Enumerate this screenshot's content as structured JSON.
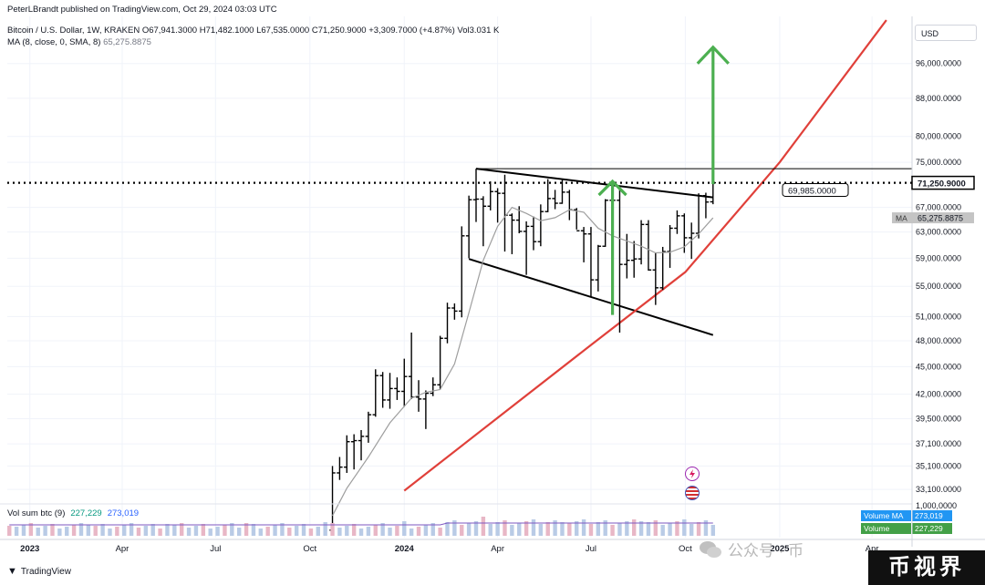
{
  "header": {
    "publisher": "PeterLBrandt published on TradingView.com, Oct 29, 2024 03:03 UTC",
    "symbol": "Bitcoin / U.S. Dollar, 1W, KRAKEN",
    "open_label": "O",
    "open": "67,941.3000",
    "high_label": "H",
    "high": "71,482.1000",
    "low_label": "L",
    "low": "67,535.0000",
    "close_label": "C",
    "close": "71,250.9000",
    "change": "+3,309.7000 (+4.87%)",
    "vol": "Vol3.031 K",
    "ma_label": "MA (8, close, 0, SMA, 8)",
    "ma_value": "65,275.8875"
  },
  "currency": "USD",
  "volume_header": {
    "label": "Vol sum btc (9)",
    "value1": "227,229",
    "value2": "273,019"
  },
  "footer_brand": "TradingView",
  "watermark": {
    "text": "公众号 · 币",
    "badge": "币视界"
  },
  "chart_data": {
    "type": "candlestick",
    "title": "Bitcoin / U.S. Dollar, 1W, KRAKEN",
    "y_scale": "log",
    "ylim": [
      32000,
      108000
    ],
    "y_ticks": [
      96000,
      88000,
      80000,
      75000,
      67000,
      63000,
      59000,
      55000,
      51000,
      48000,
      45000,
      42000,
      39500,
      37100,
      35100,
      33100
    ],
    "y_tick_labels": [
      "96,000.0000",
      "88,000.0000",
      "80,000.0000",
      "75,000.0000",
      "67,000.0000",
      "63,000.0000",
      "59,000.0000",
      "55,000.0000",
      "51,000.0000",
      "48,000.0000",
      "45,000.0000",
      "42,000.0000",
      "39,500.0000",
      "37,100.0000",
      "35,100.0000",
      "33,100.0000"
    ],
    "x_ticks": [
      "2023-01-01",
      "2023-04-01",
      "2023-07-01",
      "2023-10-01",
      "2024-01-01",
      "2024-04-01",
      "2024-07-01",
      "2024-10-01",
      "2025-01-01",
      "2025-04-01"
    ],
    "x_tick_labels": [
      "2023",
      "Apr",
      "Jul",
      "Oct",
      "2024",
      "Apr",
      "Jul",
      "Oct",
      "2025",
      "Apr"
    ],
    "x_range": [
      "2022-12-10",
      "2025-05-10"
    ],
    "price_labels": [
      {
        "value": 71250.9,
        "text": "71,250.9000",
        "style": "current"
      },
      {
        "value": 65275.8875,
        "text": "65,275.8875",
        "tag": "MA",
        "style": "ma"
      },
      {
        "value": 69985,
        "text": "69,985.0000",
        "style": "annotation"
      }
    ],
    "candles": [
      [
        "2023-10-23",
        29900,
        35100,
        29700,
        34500
      ],
      [
        "2023-10-30",
        34500,
        35900,
        33900,
        35000
      ],
      [
        "2023-11-06",
        35000,
        37900,
        34500,
        37300
      ],
      [
        "2023-11-13",
        37300,
        38000,
        34800,
        37400
      ],
      [
        "2023-11-20",
        37400,
        38400,
        35600,
        37800
      ],
      [
        "2023-11-27",
        37800,
        40200,
        37200,
        39900
      ],
      [
        "2023-12-04",
        39900,
        44700,
        39700,
        44000
      ],
      [
        "2023-12-11",
        44000,
        44400,
        40600,
        41400
      ],
      [
        "2023-12-18",
        41400,
        44300,
        40500,
        42600
      ],
      [
        "2023-12-25",
        42600,
        43800,
        41400,
        42300
      ],
      [
        "2024-01-01",
        42300,
        45900,
        40700,
        43900
      ],
      [
        "2024-01-08",
        43900,
        49000,
        41500,
        41700
      ],
      [
        "2024-01-15",
        41700,
        43500,
        40200,
        41500
      ],
      [
        "2024-01-22",
        41500,
        42400,
        38500,
        42100
      ],
      [
        "2024-01-29",
        42100,
        43800,
        41800,
        43000
      ],
      [
        "2024-02-05",
        43000,
        48600,
        42500,
        48300
      ],
      [
        "2024-02-12",
        48300,
        52800,
        47700,
        52100
      ],
      [
        "2024-02-19",
        52100,
        52700,
        50600,
        51700
      ],
      [
        "2024-02-26",
        51700,
        63900,
        50900,
        62400
      ],
      [
        "2024-03-04",
        62400,
        69000,
        59000,
        68300
      ],
      [
        "2024-03-11",
        68300,
        73800,
        64600,
        68400
      ],
      [
        "2024-03-18",
        68400,
        68900,
        60800,
        67200
      ],
      [
        "2024-03-25",
        67200,
        71500,
        66500,
        69700
      ],
      [
        "2024-04-01",
        69700,
        70300,
        64500,
        69400
      ],
      [
        "2024-04-08",
        69400,
        72700,
        60000,
        65700
      ],
      [
        "2024-04-15",
        65700,
        66000,
        59600,
        64900
      ],
      [
        "2024-04-22",
        64900,
        67200,
        62800,
        63100
      ],
      [
        "2024-04-29",
        63100,
        64700,
        56600,
        63900
      ],
      [
        "2024-05-06",
        63900,
        65500,
        60200,
        61500
      ],
      [
        "2024-05-13",
        61500,
        67500,
        60800,
        66300
      ],
      [
        "2024-05-20",
        66300,
        71900,
        66200,
        68500
      ],
      [
        "2024-05-27",
        68500,
        70000,
        66700,
        67700
      ],
      [
        "2024-06-03",
        67700,
        71900,
        67600,
        69600
      ],
      [
        "2024-06-10",
        69600,
        70000,
        64900,
        66600
      ],
      [
        "2024-06-17",
        66600,
        66900,
        63400,
        63200
      ],
      [
        "2024-06-24",
        63200,
        63800,
        58400,
        62700
      ],
      [
        "2024-07-01",
        62700,
        63800,
        53500,
        55900
      ],
      [
        "2024-07-08",
        55900,
        61000,
        54300,
        60800
      ],
      [
        "2024-07-15",
        60800,
        68400,
        60700,
        68200
      ],
      [
        "2024-07-22",
        68200,
        68500,
        63600,
        68200
      ],
      [
        "2024-07-29",
        68200,
        70000,
        49000,
        58100
      ],
      [
        "2024-08-05",
        58100,
        62700,
        56100,
        58700
      ],
      [
        "2024-08-12",
        58700,
        61600,
        56200,
        58900
      ],
      [
        "2024-08-19",
        58900,
        64900,
        58100,
        64200
      ],
      [
        "2024-08-26",
        64200,
        64900,
        57200,
        57300
      ],
      [
        "2024-09-02",
        57300,
        59800,
        52500,
        54800
      ],
      [
        "2024-09-09",
        54800,
        60700,
        54500,
        60000
      ],
      [
        "2024-09-16",
        60000,
        64100,
        57600,
        63600
      ],
      [
        "2024-09-23",
        63600,
        66500,
        62700,
        65600
      ],
      [
        "2024-09-30",
        65600,
        66000,
        59800,
        62100
      ],
      [
        "2024-10-07",
        62100,
        64500,
        58900,
        62800
      ],
      [
        "2024-10-14",
        62800,
        69400,
        62000,
        69000
      ],
      [
        "2024-10-21",
        69000,
        69500,
        65200,
        67900
      ],
      [
        "2024-10-28",
        67941.3,
        71482.1,
        67535,
        71250.9
      ]
    ],
    "ma_line": [
      [
        "2023-10-23",
        31000
      ],
      [
        "2023-11-06",
        33200
      ],
      [
        "2023-11-27",
        35900
      ],
      [
        "2023-12-18",
        39100
      ],
      [
        "2024-01-08",
        41600
      ],
      [
        "2024-01-22",
        42200
      ],
      [
        "2024-02-05",
        42500
      ],
      [
        "2024-02-19",
        45300
      ],
      [
        "2024-03-04",
        51500
      ],
      [
        "2024-03-18",
        58700
      ],
      [
        "2024-04-01",
        63900
      ],
      [
        "2024-04-15",
        67000
      ],
      [
        "2024-04-29",
        66000
      ],
      [
        "2024-05-13",
        64800
      ],
      [
        "2024-05-27",
        65300
      ],
      [
        "2024-06-10",
        66600
      ],
      [
        "2024-06-24",
        66200
      ],
      [
        "2024-07-08",
        63600
      ],
      [
        "2024-07-22",
        62400
      ],
      [
        "2024-08-05",
        61600
      ],
      [
        "2024-08-19",
        60800
      ],
      [
        "2024-09-02",
        59800
      ],
      [
        "2024-09-16",
        59900
      ],
      [
        "2024-09-30",
        60700
      ],
      [
        "2024-10-14",
        62700
      ],
      [
        "2024-10-28",
        65275.8875
      ]
    ],
    "trendlines": [
      {
        "name": "upper-wedge",
        "points": [
          [
            "2024-03-11",
            73800
          ],
          [
            "2024-10-28",
            68700
          ]
        ],
        "color": "#000000"
      },
      {
        "name": "lower-wedge",
        "points": [
          [
            "2024-03-04",
            58900
          ],
          [
            "2024-10-28",
            48700
          ]
        ],
        "color": "#000000"
      },
      {
        "name": "support-curve",
        "points": [
          [
            "2024-01-01",
            33000
          ],
          [
            "2024-04-01",
            39600
          ],
          [
            "2024-07-01",
            47500
          ],
          [
            "2024-10-01",
            57000
          ],
          [
            "2025-01-01",
            75000
          ],
          [
            "2025-04-15",
            107000
          ]
        ],
        "color": "#e0403a"
      }
    ],
    "horizontal_lines": [
      {
        "value": 71250.9,
        "style": "dotted",
        "color": "#000000"
      },
      {
        "value": 73800,
        "style": "solid",
        "from": "2024-03-11",
        "color": "#000000"
      }
    ],
    "arrows": [
      {
        "name": "target-small",
        "x": "2024-07-22",
        "from": 51200,
        "to": 71500,
        "color": "#4caf50"
      },
      {
        "name": "target-large",
        "x": "2024-10-28",
        "from": 71000,
        "to": 100000,
        "color": "#4caf50"
      }
    ],
    "volume": {
      "series_name": "Vol sum btc (9)",
      "label_ma": "Volume MA",
      "label_volume": "Volume",
      "ma_value": "273,019",
      "value": "227,229",
      "ticks": [
        "1,000,0000"
      ]
    }
  }
}
